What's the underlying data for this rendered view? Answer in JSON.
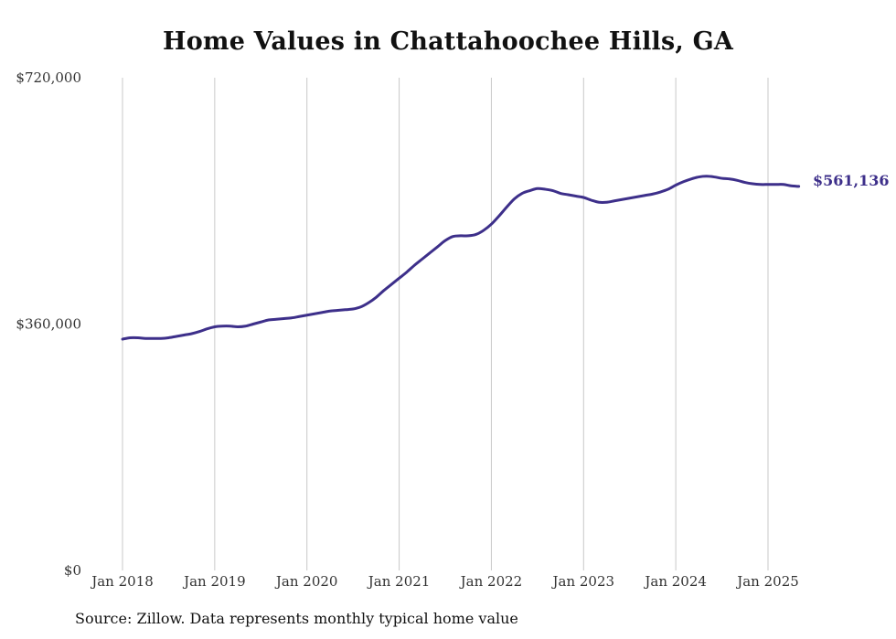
{
  "chart_data": {
    "type": "line",
    "title": "Home Values in Chattahoochee Hills, GA",
    "xlabel": "",
    "ylabel": "",
    "ylim": [
      0,
      720000
    ],
    "yticks": [
      {
        "value": 0,
        "label": "$0"
      },
      {
        "value": 360000,
        "label": "$360,000"
      },
      {
        "value": 720000,
        "label": "$720,000"
      }
    ],
    "xticks": [
      {
        "value": "2018-01",
        "label": "Jan 2018"
      },
      {
        "value": "2019-01",
        "label": "Jan 2019"
      },
      {
        "value": "2020-01",
        "label": "Jan 2020"
      },
      {
        "value": "2021-01",
        "label": "Jan 2021"
      },
      {
        "value": "2022-01",
        "label": "Jan 2022"
      },
      {
        "value": "2023-01",
        "label": "Jan 2023"
      },
      {
        "value": "2024-01",
        "label": "Jan 2024"
      },
      {
        "value": "2025-01",
        "label": "Jan 2025"
      }
    ],
    "grid": {
      "vertical": true,
      "horizontal": false
    },
    "line_color": "#3d2f8a",
    "end_label": "$561,136",
    "series": [
      {
        "x": [
          "2018-01",
          "2018-02",
          "2018-03",
          "2018-04",
          "2018-05",
          "2018-06",
          "2018-07",
          "2018-08",
          "2018-09",
          "2018-10",
          "2018-11",
          "2018-12",
          "2019-01",
          "2019-02",
          "2019-03",
          "2019-04",
          "2019-05",
          "2019-06",
          "2019-07",
          "2019-08",
          "2019-09",
          "2019-10",
          "2019-11",
          "2019-12",
          "2020-01",
          "2020-02",
          "2020-03",
          "2020-04",
          "2020-05",
          "2020-06",
          "2020-07",
          "2020-08",
          "2020-09",
          "2020-10",
          "2020-11",
          "2020-12",
          "2021-01",
          "2021-02",
          "2021-03",
          "2021-04",
          "2021-05",
          "2021-06",
          "2021-07",
          "2021-08",
          "2021-09",
          "2021-10",
          "2021-11",
          "2021-12",
          "2022-01",
          "2022-02",
          "2022-03",
          "2022-04",
          "2022-05",
          "2022-06",
          "2022-07",
          "2022-08",
          "2022-09",
          "2022-10",
          "2022-11",
          "2022-12",
          "2023-01",
          "2023-02",
          "2023-03",
          "2023-04",
          "2023-05",
          "2023-06",
          "2023-07",
          "2023-08",
          "2023-09",
          "2023-10",
          "2023-11",
          "2023-12",
          "2024-01",
          "2024-02",
          "2024-03",
          "2024-04",
          "2024-05",
          "2024-06",
          "2024-07",
          "2024-08",
          "2024-09",
          "2024-10",
          "2024-11",
          "2024-12",
          "2025-01",
          "2025-02",
          "2025-03",
          "2025-04",
          "2025-05"
        ],
        "y": [
          338000,
          340000,
          340000,
          339000,
          339000,
          339000,
          340000,
          342000,
          344000,
          346000,
          349000,
          353000,
          356000,
          357000,
          357000,
          356000,
          357000,
          360000,
          363000,
          366000,
          367000,
          368000,
          369000,
          371000,
          373000,
          375000,
          377000,
          379000,
          380000,
          381000,
          382000,
          385000,
          391000,
          399000,
          409000,
          418000,
          427000,
          436000,
          446000,
          455000,
          464000,
          473000,
          482000,
          488000,
          489000,
          489000,
          491000,
          497000,
          506000,
          518000,
          531000,
          543000,
          551000,
          555000,
          558000,
          557000,
          555000,
          551000,
          549000,
          547000,
          545000,
          541000,
          538000,
          538000,
          540000,
          542000,
          544000,
          546000,
          548000,
          550000,
          553000,
          557000,
          563000,
          568000,
          572000,
          575000,
          576000,
          575000,
          573000,
          572000,
          570000,
          567000,
          565000,
          564000,
          564000,
          564000,
          564000,
          562000,
          561136
        ]
      }
    ]
  },
  "source_note": "Source: Zillow. Data represents monthly typical home value"
}
